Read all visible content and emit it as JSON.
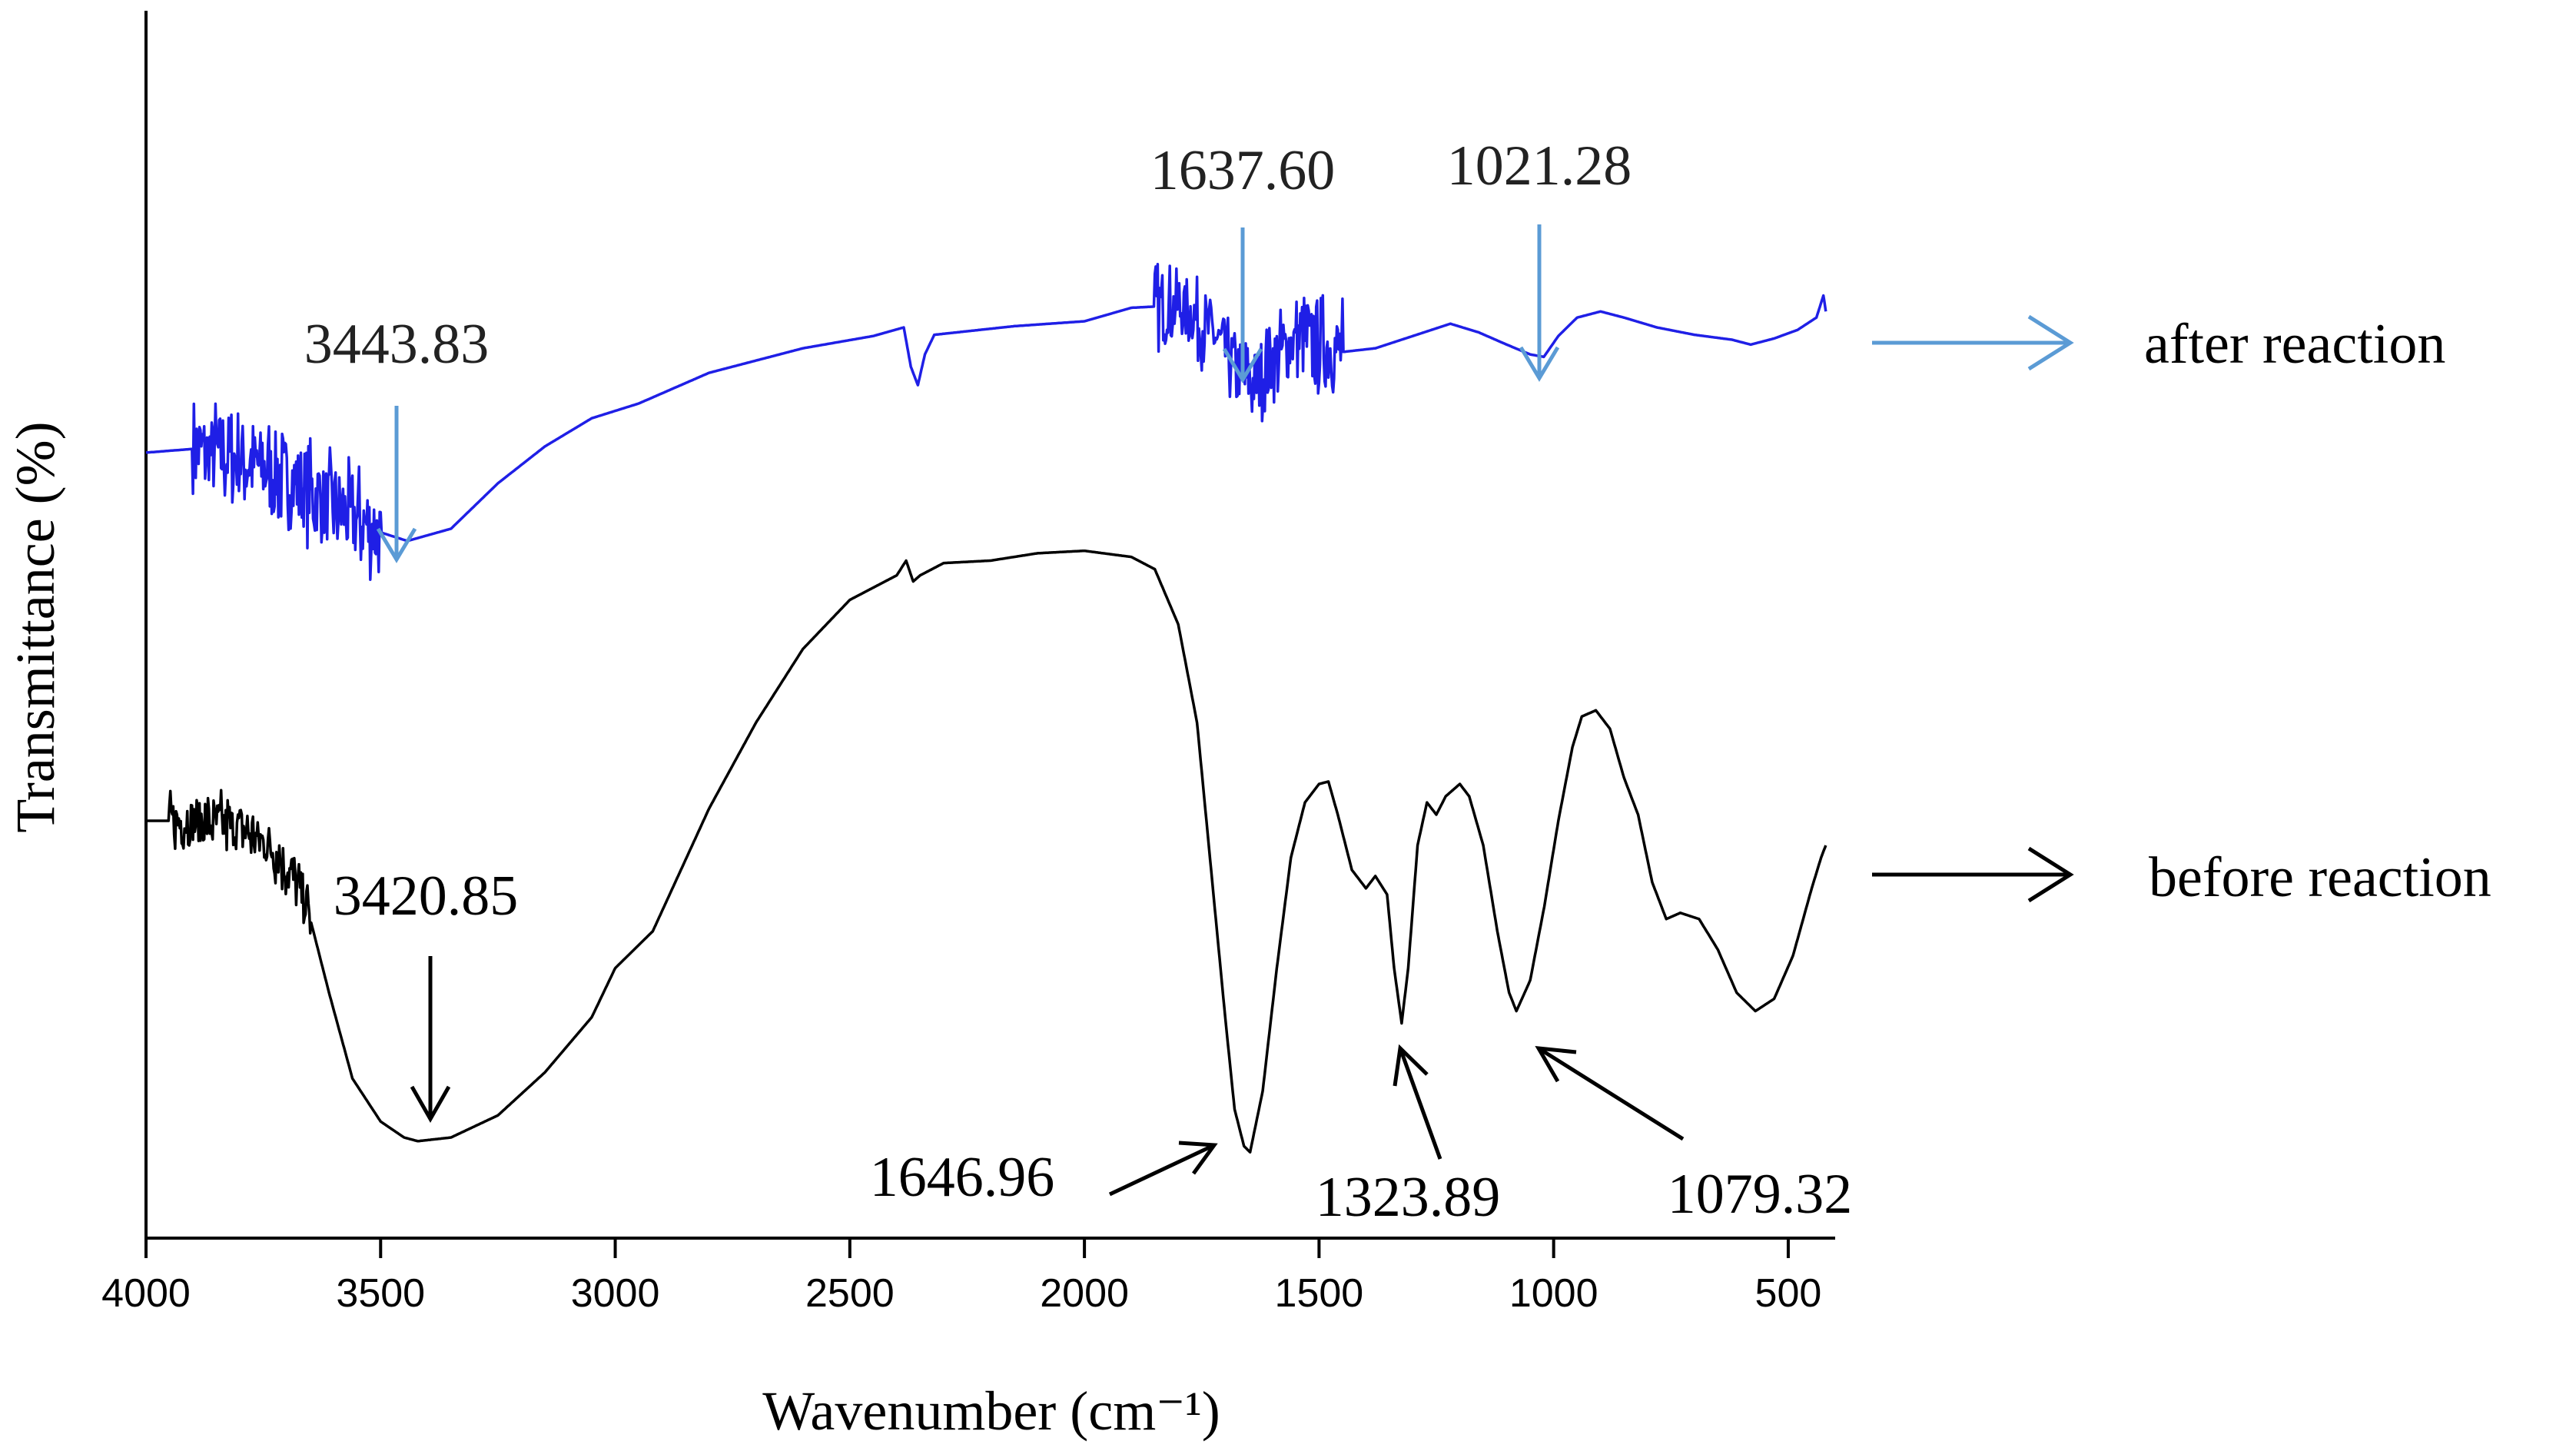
{
  "chart_data": {
    "type": "line",
    "xlabel": "Wavenumber (cm⁻¹)",
    "ylabel": "Transmittance (%)",
    "xlim": [
      4000,
      400
    ],
    "x_reversed": true,
    "x_ticks": [
      4000,
      3500,
      3000,
      2500,
      2000,
      1500,
      1000,
      500
    ],
    "y_ticks": [],
    "grid": false,
    "ylim": [
      0,
      100
    ],
    "series": [
      {
        "name": "after reaction",
        "color": "#1f1fe6",
        "noisy_ranges": [
          [
            3900,
            3500,
            5
          ],
          [
            1850,
            1550,
            4
          ],
          [
            1550,
            1450,
            5
          ]
        ],
        "points": [
          [
            4000,
            64.0
          ],
          [
            3900,
            64.3
          ],
          [
            3800,
            63.5
          ],
          [
            3700,
            62.0
          ],
          [
            3600,
            59.5
          ],
          [
            3500,
            57.5
          ],
          [
            3443,
            56.8
          ],
          [
            3350,
            57.8
          ],
          [
            3250,
            61.5
          ],
          [
            3150,
            64.5
          ],
          [
            3050,
            66.8
          ],
          [
            2950,
            68.0
          ],
          [
            2800,
            70.5
          ],
          [
            2600,
            72.5
          ],
          [
            2450,
            73.5
          ],
          [
            2385,
            74.2
          ],
          [
            2370,
            71.0
          ],
          [
            2355,
            69.5
          ],
          [
            2340,
            72.0
          ],
          [
            2320,
            73.6
          ],
          [
            2150,
            74.3
          ],
          [
            2000,
            74.7
          ],
          [
            1900,
            75.8
          ],
          [
            1800,
            76.0
          ],
          [
            1730,
            74.0
          ],
          [
            1690,
            71.5
          ],
          [
            1660,
            70.0
          ],
          [
            1637,
            69.5
          ],
          [
            1600,
            71.5
          ],
          [
            1550,
            73.2
          ],
          [
            1500,
            73.0
          ],
          [
            1450,
            72.2
          ],
          [
            1380,
            72.5
          ],
          [
            1300,
            73.5
          ],
          [
            1220,
            74.5
          ],
          [
            1160,
            73.8
          ],
          [
            1100,
            72.8
          ],
          [
            1050,
            72.0
          ],
          [
            1021,
            71.8
          ],
          [
            990,
            73.5
          ],
          [
            950,
            75.0
          ],
          [
            900,
            75.5
          ],
          [
            850,
            75.0
          ],
          [
            780,
            74.2
          ],
          [
            700,
            73.6
          ],
          [
            620,
            73.2
          ],
          [
            580,
            72.8
          ],
          [
            530,
            73.3
          ],
          [
            480,
            74.0
          ],
          [
            440,
            75.0
          ],
          [
            425,
            76.8
          ],
          [
            420,
            75.5
          ]
        ]
      },
      {
        "name": "before reaction",
        "color": "#000000",
        "noisy_ranges": [
          [
            3950,
            3650,
            3
          ]
        ],
        "points": [
          [
            4000,
            34.0
          ],
          [
            3900,
            34.0
          ],
          [
            3800,
            33.5
          ],
          [
            3720,
            31.5
          ],
          [
            3660,
            27.5
          ],
          [
            3610,
            20.0
          ],
          [
            3560,
            13.0
          ],
          [
            3500,
            9.5
          ],
          [
            3450,
            8.2
          ],
          [
            3420.85,
            7.9
          ],
          [
            3350,
            8.2
          ],
          [
            3250,
            10.0
          ],
          [
            3150,
            13.5
          ],
          [
            3050,
            18.0
          ],
          [
            3000,
            22.0
          ],
          [
            2960,
            23.5
          ],
          [
            2920,
            25.0
          ],
          [
            2860,
            30.0
          ],
          [
            2800,
            35.0
          ],
          [
            2700,
            42.0
          ],
          [
            2600,
            48.0
          ],
          [
            2500,
            52.0
          ],
          [
            2400,
            54.0
          ],
          [
            2380,
            55.2
          ],
          [
            2365,
            53.5
          ],
          [
            2350,
            54.0
          ],
          [
            2300,
            55.0
          ],
          [
            2200,
            55.2
          ],
          [
            2100,
            55.8
          ],
          [
            2000,
            56.0
          ],
          [
            1900,
            55.5
          ],
          [
            1850,
            54.5
          ],
          [
            1800,
            50.0
          ],
          [
            1760,
            42.0
          ],
          [
            1730,
            30.0
          ],
          [
            1700,
            18.0
          ],
          [
            1680,
            10.5
          ],
          [
            1660,
            7.5
          ],
          [
            1646.96,
            7.0
          ],
          [
            1620,
            12.0
          ],
          [
            1590,
            22.0
          ],
          [
            1560,
            31.0
          ],
          [
            1530,
            35.5
          ],
          [
            1500,
            37.0
          ],
          [
            1480,
            37.2
          ],
          [
            1460,
            34.5
          ],
          [
            1430,
            30.0
          ],
          [
            1400,
            28.5
          ],
          [
            1380,
            29.5
          ],
          [
            1355,
            28.0
          ],
          [
            1340,
            22.0
          ],
          [
            1323.89,
            17.5
          ],
          [
            1310,
            22.0
          ],
          [
            1290,
            32.0
          ],
          [
            1270,
            35.5
          ],
          [
            1250,
            34.5
          ],
          [
            1230,
            36.0
          ],
          [
            1200,
            37.0
          ],
          [
            1180,
            36.0
          ],
          [
            1150,
            32.0
          ],
          [
            1120,
            25.0
          ],
          [
            1095,
            20.0
          ],
          [
            1079.32,
            18.5
          ],
          [
            1050,
            21.0
          ],
          [
            1020,
            27.0
          ],
          [
            990,
            34.0
          ],
          [
            960,
            40.0
          ],
          [
            940,
            42.5
          ],
          [
            910,
            43.0
          ],
          [
            880,
            41.5
          ],
          [
            850,
            37.5
          ],
          [
            820,
            34.5
          ],
          [
            790,
            29.0
          ],
          [
            760,
            26.0
          ],
          [
            730,
            26.5
          ],
          [
            690,
            26.0
          ],
          [
            650,
            23.5
          ],
          [
            610,
            20.0
          ],
          [
            570,
            18.5
          ],
          [
            530,
            19.5
          ],
          [
            490,
            23.0
          ],
          [
            450,
            28.5
          ],
          [
            430,
            31.0
          ],
          [
            420,
            32.0
          ]
        ]
      }
    ],
    "annotations": [
      {
        "text": "3443.83",
        "series": "after reaction",
        "color": "#5b9bd5"
      },
      {
        "text": "1637.60",
        "series": "after reaction",
        "color": "#5b9bd5"
      },
      {
        "text": "1021.28",
        "series": "after reaction",
        "color": "#5b9bd5"
      },
      {
        "text": "3420.85",
        "series": "before reaction",
        "color": "#000000"
      },
      {
        "text": "1646.96",
        "series": "before reaction",
        "color": "#000000"
      },
      {
        "text": "1323.89",
        "series": "before reaction",
        "color": "#000000"
      },
      {
        "text": "1079.32",
        "series": "before reaction",
        "color": "#000000"
      }
    ],
    "legend": [
      {
        "text": "after reaction",
        "color": "#5b9bd5"
      },
      {
        "text": "before reaction",
        "color": "#000000"
      }
    ]
  }
}
